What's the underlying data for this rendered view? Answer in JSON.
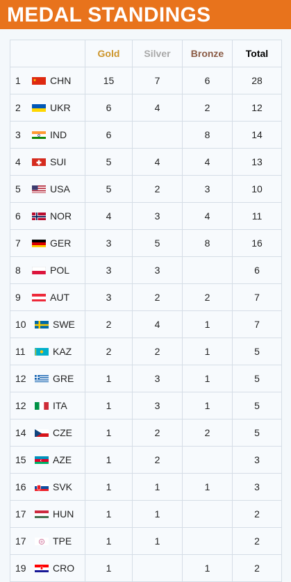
{
  "title": "MEDAL STANDINGS",
  "columns": {
    "gold": "Gold",
    "silver": "Silver",
    "bronze": "Bronze",
    "total": "Total"
  },
  "colors": {
    "header_bg": "#e8731c",
    "gold": "#cc9429",
    "silver": "#a8a8a8",
    "bronze": "#8a5a44",
    "total": "#000000"
  },
  "rows": [
    {
      "rank": "1",
      "country": "CHN",
      "flag": "china-flag-icon",
      "gold": "15",
      "silver": "7",
      "bronze": "6",
      "total": "28"
    },
    {
      "rank": "2",
      "country": "UKR",
      "flag": "ukraine-flag-icon",
      "gold": "6",
      "silver": "4",
      "bronze": "2",
      "total": "12"
    },
    {
      "rank": "3",
      "country": "IND",
      "flag": "india-flag-icon",
      "gold": "6",
      "silver": "",
      "bronze": "8",
      "total": "14"
    },
    {
      "rank": "4",
      "country": "SUI",
      "flag": "switzerland-flag-icon",
      "gold": "5",
      "silver": "4",
      "bronze": "4",
      "total": "13"
    },
    {
      "rank": "5",
      "country": "USA",
      "flag": "usa-flag-icon",
      "gold": "5",
      "silver": "2",
      "bronze": "3",
      "total": "10"
    },
    {
      "rank": "6",
      "country": "NOR",
      "flag": "norway-flag-icon",
      "gold": "4",
      "silver": "3",
      "bronze": "4",
      "total": "11"
    },
    {
      "rank": "7",
      "country": "GER",
      "flag": "germany-flag-icon",
      "gold": "3",
      "silver": "5",
      "bronze": "8",
      "total": "16"
    },
    {
      "rank": "8",
      "country": "POL",
      "flag": "poland-flag-icon",
      "gold": "3",
      "silver": "3",
      "bronze": "",
      "total": "6"
    },
    {
      "rank": "9",
      "country": "AUT",
      "flag": "austria-flag-icon",
      "gold": "3",
      "silver": "2",
      "bronze": "2",
      "total": "7"
    },
    {
      "rank": "10",
      "country": "SWE",
      "flag": "sweden-flag-icon",
      "gold": "2",
      "silver": "4",
      "bronze": "1",
      "total": "7"
    },
    {
      "rank": "11",
      "country": "KAZ",
      "flag": "kazakhstan-flag-icon",
      "gold": "2",
      "silver": "2",
      "bronze": "1",
      "total": "5"
    },
    {
      "rank": "12",
      "country": "GRE",
      "flag": "greece-flag-icon",
      "gold": "1",
      "silver": "3",
      "bronze": "1",
      "total": "5"
    },
    {
      "rank": "12",
      "country": "ITA",
      "flag": "italy-flag-icon",
      "gold": "1",
      "silver": "3",
      "bronze": "1",
      "total": "5"
    },
    {
      "rank": "14",
      "country": "CZE",
      "flag": "czechia-flag-icon",
      "gold": "1",
      "silver": "2",
      "bronze": "2",
      "total": "5"
    },
    {
      "rank": "15",
      "country": "AZE",
      "flag": "azerbaijan-flag-icon",
      "gold": "1",
      "silver": "2",
      "bronze": "",
      "total": "3"
    },
    {
      "rank": "16",
      "country": "SVK",
      "flag": "slovakia-flag-icon",
      "gold": "1",
      "silver": "1",
      "bronze": "1",
      "total": "3"
    },
    {
      "rank": "17",
      "country": "HUN",
      "flag": "hungary-flag-icon",
      "gold": "1",
      "silver": "1",
      "bronze": "",
      "total": "2"
    },
    {
      "rank": "17",
      "country": "TPE",
      "flag": "chinese-taipei-flag-icon",
      "gold": "1",
      "silver": "1",
      "bronze": "",
      "total": "2"
    },
    {
      "rank": "19",
      "country": "CRO",
      "flag": "croatia-flag-icon",
      "gold": "1",
      "silver": "",
      "bronze": "1",
      "total": "2"
    }
  ]
}
